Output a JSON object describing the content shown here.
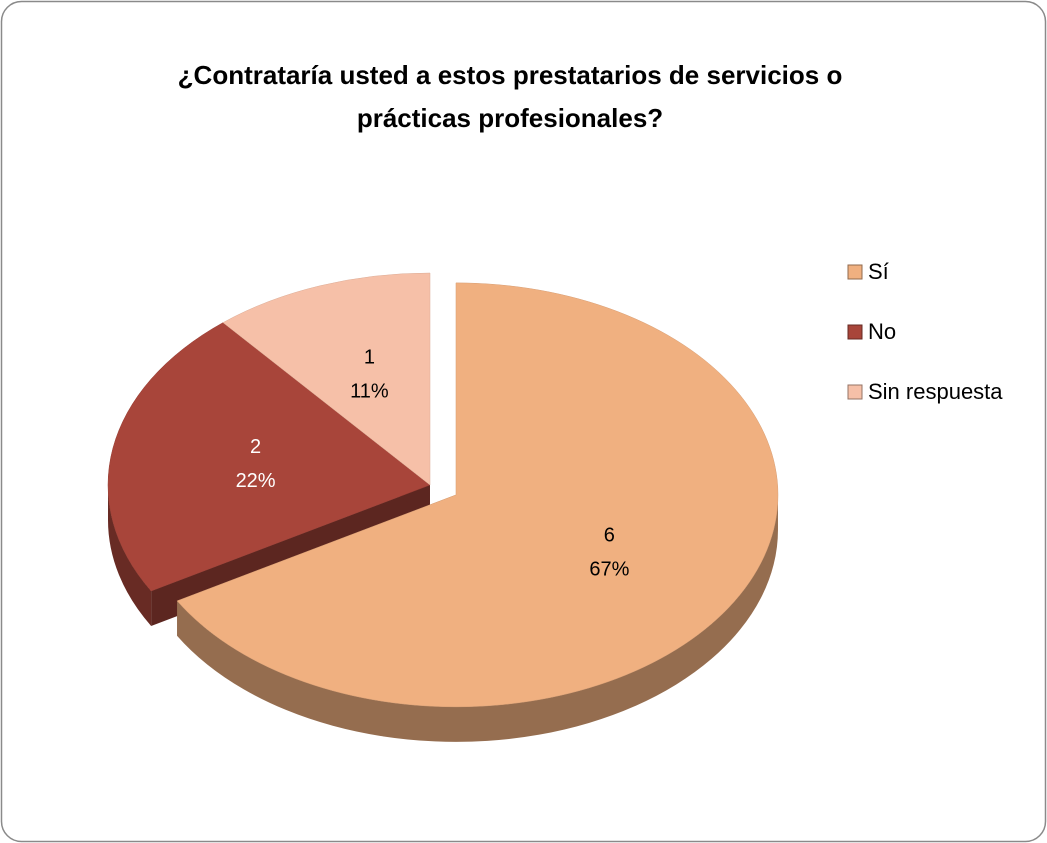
{
  "chart_data": {
    "type": "pie",
    "title": "¿Contrataría usted a estos prestatarios de servicios o prácticas profesionales?",
    "categories": [
      "Sí",
      "No",
      "Sin respuesta"
    ],
    "values": [
      6,
      2,
      1
    ],
    "percent_labels": [
      "67%",
      "22%",
      "11%"
    ],
    "colors": [
      "#f0b080",
      "#a8453a",
      "#f6c0a8"
    ],
    "label_colors": [
      "#000000",
      "#ffffff",
      "#000000"
    ],
    "exploded": [
      true,
      false,
      false
    ],
    "legend": "right"
  }
}
